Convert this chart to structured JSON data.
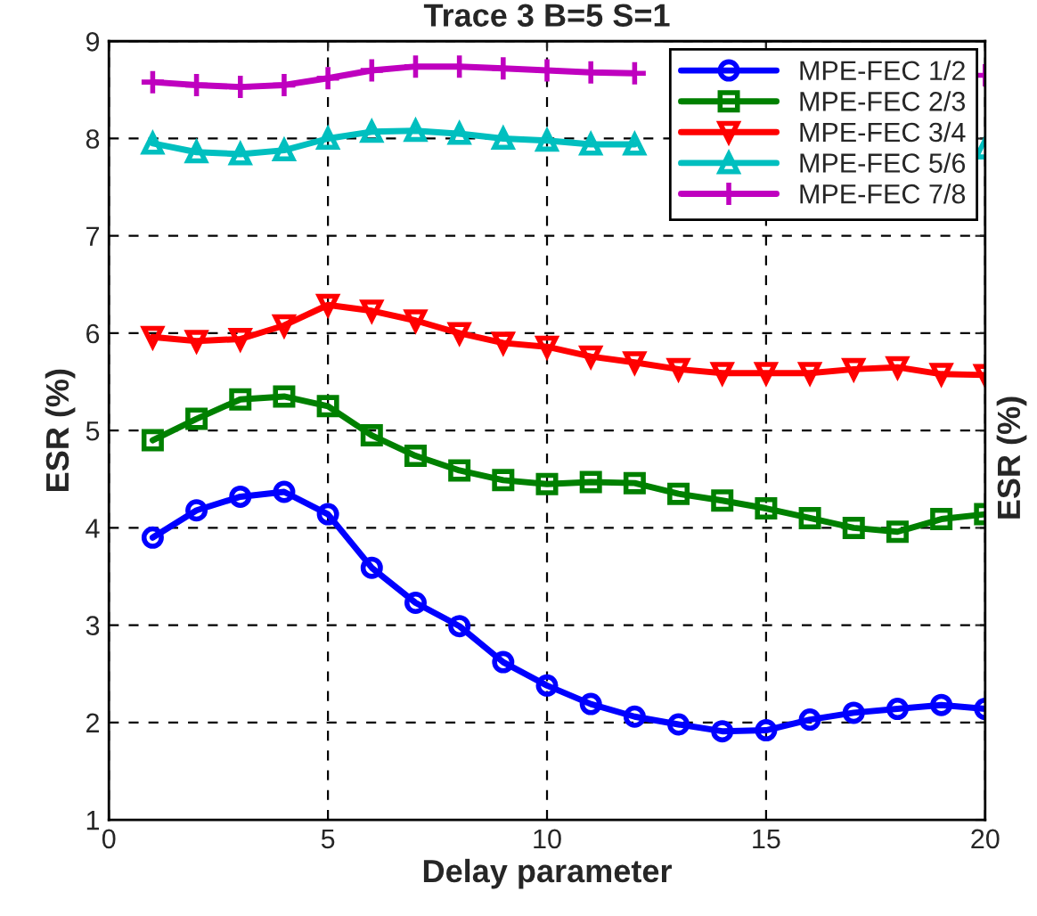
{
  "chart_data": {
    "type": "line",
    "title": "Trace 3 B=5 S=1",
    "xlabel": "Delay parameter",
    "ylabel": "ESR (%)",
    "y2label": "ESR (%)",
    "x": [
      1,
      2,
      3,
      4,
      5,
      6,
      7,
      8,
      9,
      10,
      11,
      12,
      13,
      14,
      15,
      16,
      17,
      18,
      19,
      20
    ],
    "series": [
      {
        "name": "MPE-FEC 1/2",
        "color": "#0000ff",
        "marker": "circle",
        "values": [
          3.9,
          4.18,
          4.32,
          4.37,
          4.14,
          3.59,
          3.23,
          2.99,
          2.62,
          2.38,
          2.19,
          2.06,
          1.98,
          1.91,
          1.92,
          2.03,
          2.1,
          2.14,
          2.18,
          2.14
        ]
      },
      {
        "name": "MPE-FEC 2/3",
        "color": "#008000",
        "marker": "square",
        "values": [
          4.9,
          5.12,
          5.32,
          5.35,
          5.25,
          4.95,
          4.74,
          4.59,
          4.49,
          4.45,
          4.47,
          4.46,
          4.35,
          4.28,
          4.2,
          4.1,
          4.0,
          3.96,
          4.09,
          4.14
        ]
      },
      {
        "name": "MPE-FEC 3/4",
        "color": "#ff0000",
        "marker": "triangle_down",
        "values": [
          5.96,
          5.92,
          5.94,
          6.08,
          6.29,
          6.23,
          6.13,
          6.0,
          5.9,
          5.86,
          5.76,
          5.7,
          5.63,
          5.59,
          5.59,
          5.59,
          5.63,
          5.65,
          5.58,
          5.57
        ]
      },
      {
        "name": "MPE-FEC 5/6",
        "color": "#00bfbf",
        "marker": "triangle",
        "values": [
          7.95,
          7.86,
          7.84,
          7.88,
          8.0,
          8.07,
          8.08,
          8.05,
          8.0,
          7.98,
          7.94,
          7.94,
          null,
          null,
          null,
          null,
          null,
          null,
          null,
          7.9
        ]
      },
      {
        "name": "MPE-FEC 7/8",
        "color": "#bf00bf",
        "marker": "plus",
        "values": [
          8.58,
          8.55,
          8.53,
          8.55,
          8.62,
          8.7,
          8.74,
          8.74,
          8.72,
          8.7,
          8.68,
          8.67,
          null,
          null,
          null,
          null,
          null,
          null,
          null,
          8.65
        ]
      }
    ],
    "xlim": [
      0,
      20
    ],
    "xticks": [
      0,
      5,
      10,
      15,
      20
    ],
    "ylim": [
      1,
      9
    ],
    "yticks": [
      1,
      2,
      3,
      4,
      5,
      6,
      7,
      8,
      9
    ],
    "grid": true,
    "legend": "top right"
  }
}
